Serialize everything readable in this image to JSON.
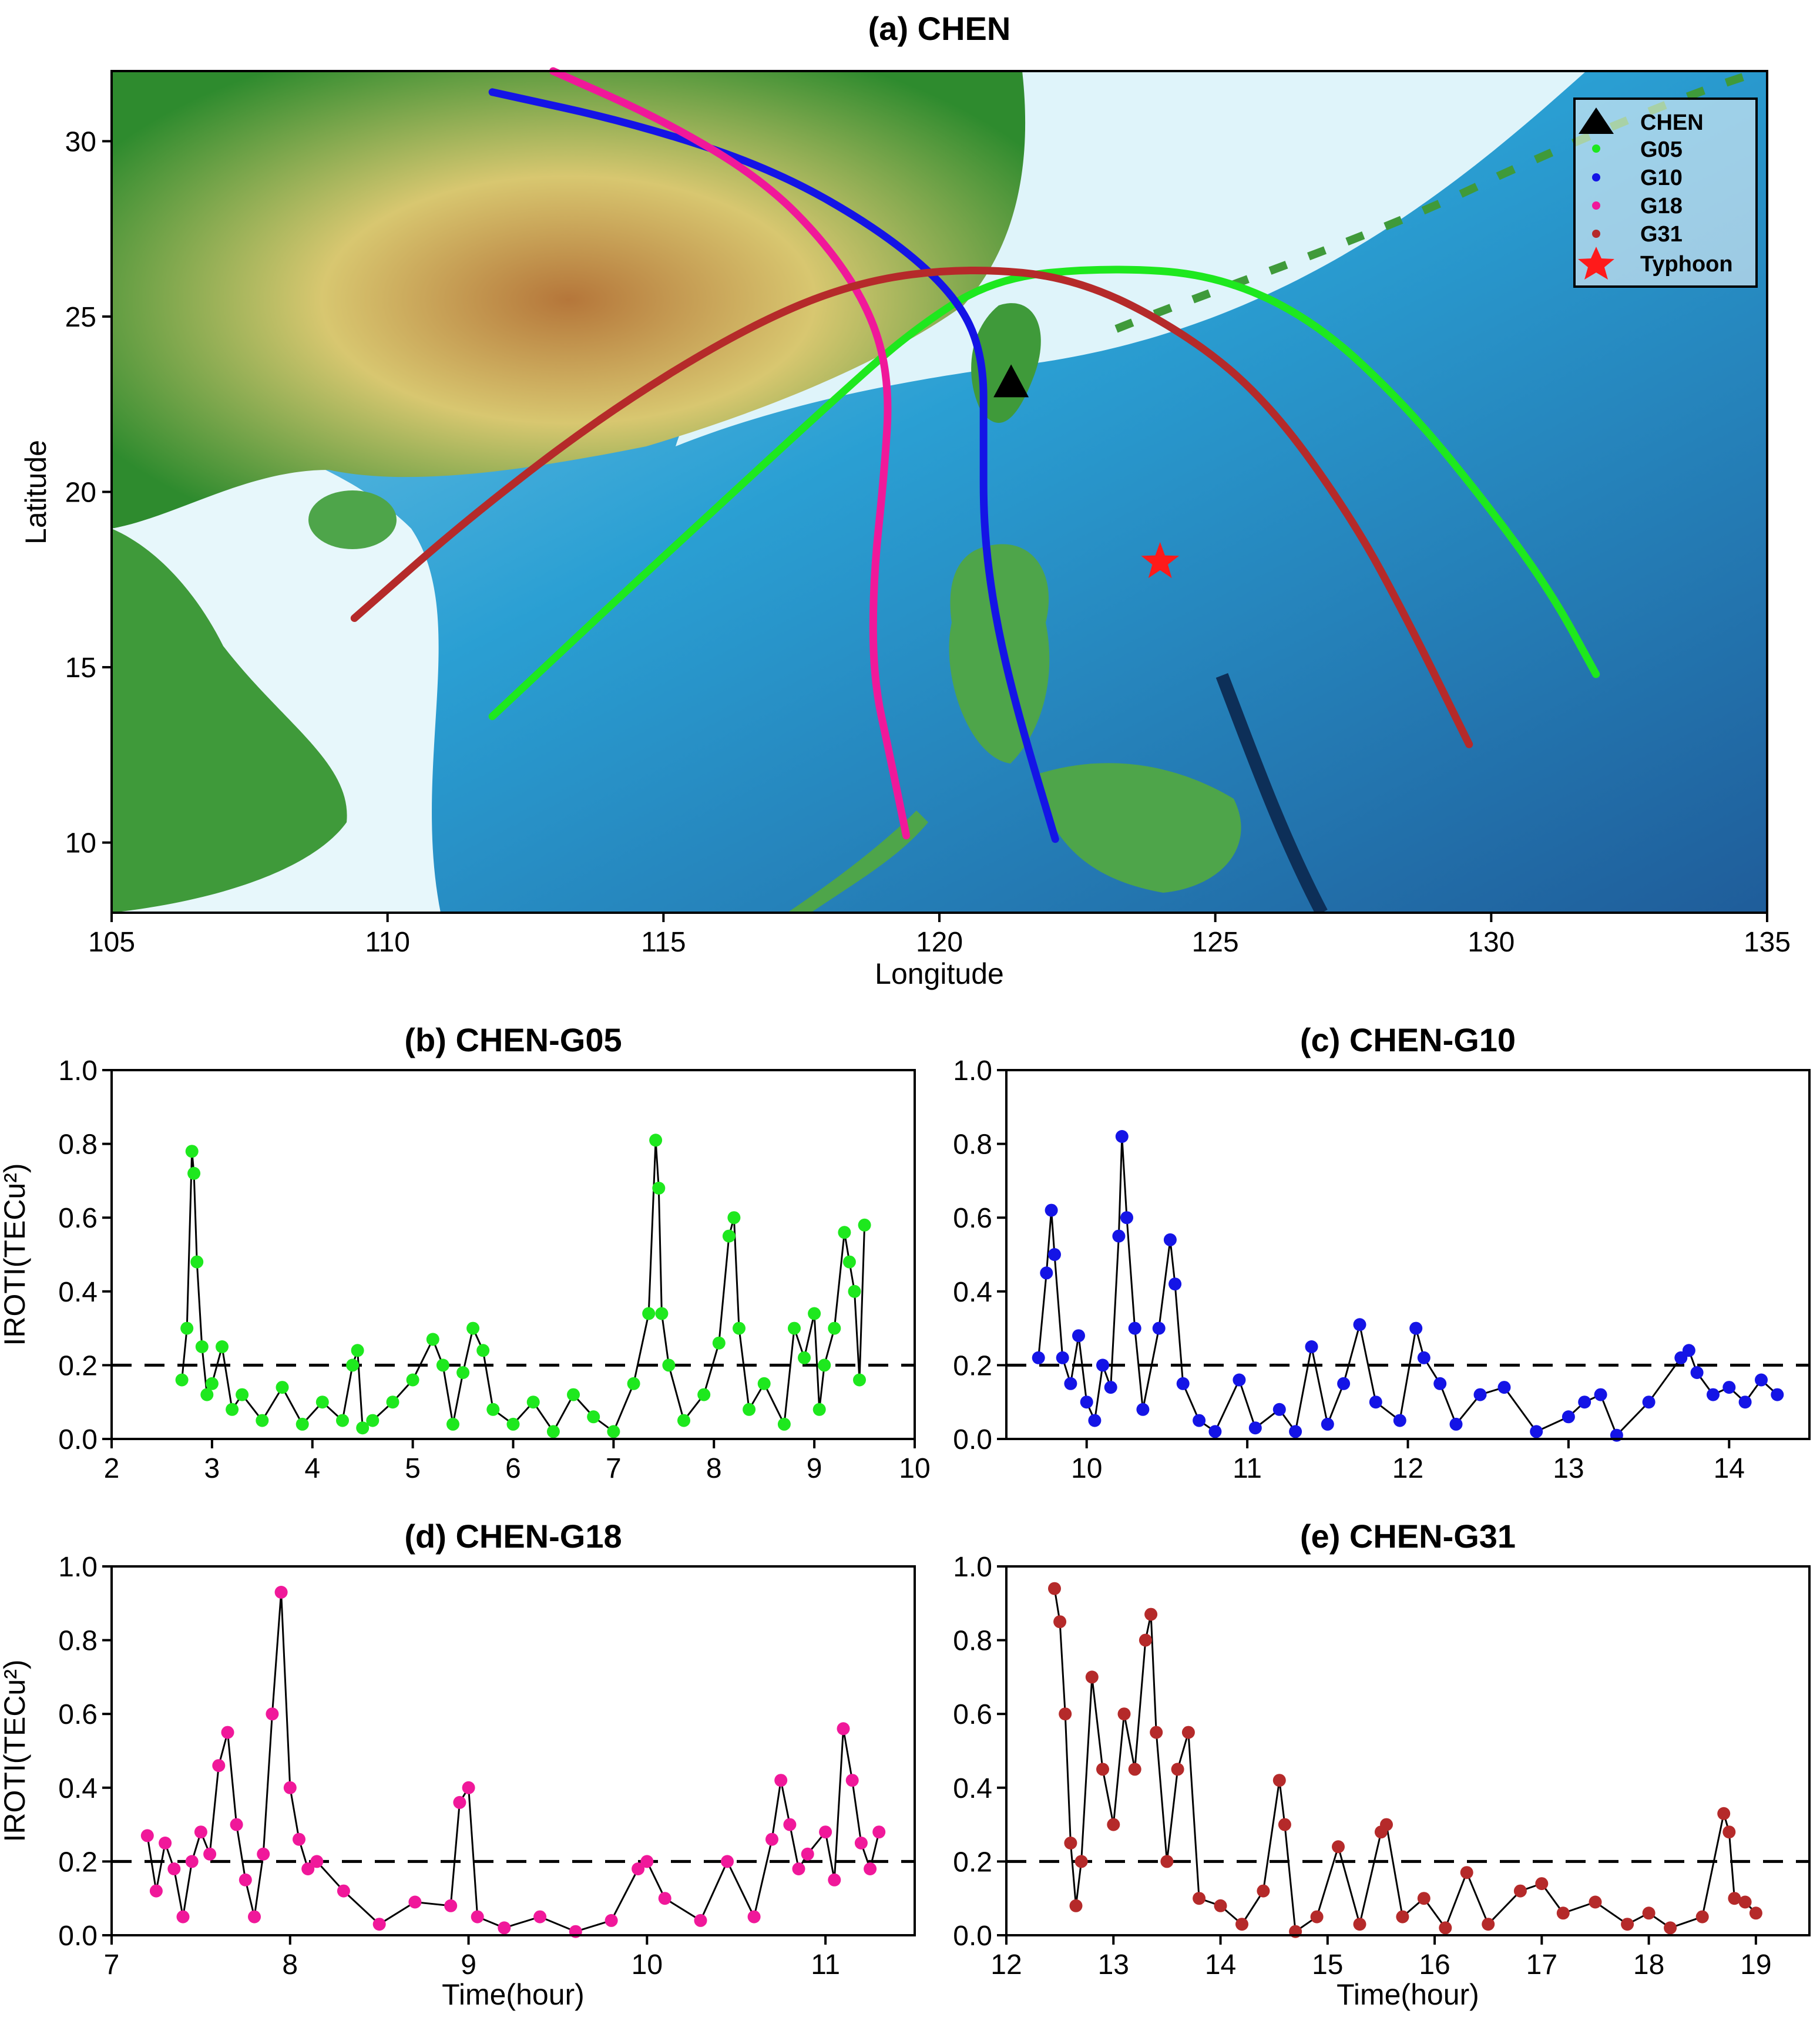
{
  "map": {
    "title": "(a) CHEN",
    "xlabel": "Longitude",
    "ylabel": "Latitude",
    "xlim": [
      105,
      135
    ],
    "ylim": [
      8,
      32
    ],
    "xticks": [
      105,
      110,
      115,
      120,
      125,
      130,
      135
    ],
    "yticks": [
      10,
      15,
      20,
      25,
      30
    ],
    "station": {
      "name": "CHEN",
      "lon": 121.3,
      "lat": 23.1
    },
    "typhoon": {
      "name": "Typhoon",
      "lon": 124.0,
      "lat": 18.0,
      "color": "#ff1a1a"
    },
    "legend": [
      "CHEN",
      "G05",
      "G10",
      "G18",
      "G31",
      "Typhoon"
    ],
    "tracks": [
      {
        "name": "G05",
        "color": "#1ee81e",
        "points": [
          [
            111.9,
            13.6
          ],
          [
            114,
            16.7
          ],
          [
            116,
            19.6
          ],
          [
            118,
            22.5
          ],
          [
            119.5,
            24.6
          ],
          [
            121,
            26.1
          ],
          [
            123,
            26.4
          ],
          [
            125,
            26.2
          ],
          [
            126.8,
            24.9
          ],
          [
            128.5,
            22.4
          ],
          [
            130,
            19.5
          ],
          [
            131.1,
            17.1
          ],
          [
            131.9,
            14.8
          ]
        ]
      },
      {
        "name": "G10",
        "color": "#1414e6",
        "points": [
          [
            111.9,
            31.4
          ],
          [
            114.5,
            30.5
          ],
          [
            117,
            29.2
          ],
          [
            119,
            27.4
          ],
          [
            120.3,
            25.6
          ],
          [
            120.8,
            23.9
          ],
          [
            120.8,
            21.5
          ],
          [
            120.8,
            19.0
          ],
          [
            121.0,
            16.5
          ],
          [
            121.4,
            13.8
          ],
          [
            122.1,
            10.1
          ]
        ]
      },
      {
        "name": "G18",
        "color": "#f0189a",
        "points": [
          [
            113.0,
            32.0
          ],
          [
            115.0,
            30.6
          ],
          [
            116.8,
            28.9
          ],
          [
            118.0,
            27.0
          ],
          [
            118.8,
            25.0
          ],
          [
            119.1,
            23.0
          ],
          [
            119.0,
            20.5
          ],
          [
            118.8,
            17.5
          ],
          [
            118.8,
            14.7
          ],
          [
            119.1,
            12.5
          ],
          [
            119.4,
            10.2
          ]
        ]
      },
      {
        "name": "G31",
        "color": "#b52a2a",
        "points": [
          [
            109.4,
            16.4
          ],
          [
            111.5,
            19.3
          ],
          [
            114,
            22.3
          ],
          [
            116.5,
            24.7
          ],
          [
            118.5,
            26.0
          ],
          [
            120.5,
            26.4
          ],
          [
            122.5,
            26.1
          ],
          [
            124.5,
            24.5
          ],
          [
            126,
            22.5
          ],
          [
            127.5,
            19.2
          ],
          [
            128.5,
            16.3
          ],
          [
            129.6,
            12.8
          ]
        ]
      }
    ]
  },
  "panels": [
    {
      "title": "(b) CHEN-G05",
      "ylabel": "IROTI(TECu²)",
      "xlabel": "",
      "color": "#1ee81e",
      "xlim": [
        2,
        10
      ],
      "ylim": [
        0,
        1.0
      ],
      "xticks": [
        2,
        3,
        4,
        5,
        6,
        7,
        8,
        9,
        10
      ],
      "yticks": [
        "0.0",
        "0.2",
        "0.4",
        "0.6",
        "0.8",
        "1.0"
      ]
    },
    {
      "title": "(c) CHEN-G10",
      "ylabel": "",
      "xlabel": "",
      "color": "#1414e6",
      "xlim": [
        9.5,
        14.5
      ],
      "ylim": [
        0,
        1.0
      ],
      "xticks": [
        10,
        11,
        12,
        13,
        14
      ],
      "yticks": [
        "0.0",
        "0.2",
        "0.4",
        "0.6",
        "0.8",
        "1.0"
      ]
    },
    {
      "title": "(d) CHEN-G18",
      "ylabel": "IROTI(TECu²)",
      "xlabel": "Time(hour)",
      "color": "#f0189a",
      "xlim": [
        7,
        11.5
      ],
      "ylim": [
        0,
        1.0
      ],
      "xticks": [
        7,
        8,
        9,
        10,
        11
      ],
      "yticks": [
        "0.0",
        "0.2",
        "0.4",
        "0.6",
        "0.8",
        "1.0"
      ]
    },
    {
      "title": "(e) CHEN-G31",
      "ylabel": "",
      "xlabel": "Time(hour)",
      "color": "#b52a2a",
      "xlim": [
        12,
        19.5
      ],
      "ylim": [
        0,
        1.0
      ],
      "xticks": [
        12,
        13,
        14,
        15,
        16,
        17,
        18,
        19
      ],
      "yticks": [
        "0.0",
        "0.2",
        "0.4",
        "0.6",
        "0.8",
        "1.0"
      ]
    }
  ],
  "chart_data": [
    {
      "type": "scatter",
      "title": "(b) CHEN-G05",
      "ylabel": "IROTI(TECu²)",
      "xlim": [
        2,
        10
      ],
      "ylim": [
        0,
        1.0
      ],
      "threshold": 0.2,
      "x": [
        2.7,
        2.75,
        2.8,
        2.82,
        2.85,
        2.9,
        2.95,
        3.0,
        3.1,
        3.2,
        3.3,
        3.5,
        3.7,
        3.9,
        4.1,
        4.3,
        4.4,
        4.45,
        4.5,
        4.6,
        4.8,
        5.0,
        5.2,
        5.3,
        5.4,
        5.5,
        5.6,
        5.7,
        5.8,
        6.0,
        6.2,
        6.4,
        6.6,
        6.8,
        7.0,
        7.2,
        7.35,
        7.42,
        7.45,
        7.48,
        7.55,
        7.7,
        7.9,
        8.05,
        8.15,
        8.2,
        8.25,
        8.35,
        8.5,
        8.7,
        8.8,
        8.9,
        9.0,
        9.05,
        9.1,
        9.2,
        9.3,
        9.35,
        9.4,
        9.45,
        9.5
      ],
      "y": [
        0.16,
        0.3,
        0.78,
        0.72,
        0.48,
        0.25,
        0.12,
        0.15,
        0.25,
        0.08,
        0.12,
        0.05,
        0.14,
        0.04,
        0.1,
        0.05,
        0.2,
        0.24,
        0.03,
        0.05,
        0.1,
        0.16,
        0.27,
        0.2,
        0.04,
        0.18,
        0.3,
        0.24,
        0.08,
        0.04,
        0.1,
        0.02,
        0.12,
        0.06,
        0.02,
        0.15,
        0.34,
        0.81,
        0.68,
        0.34,
        0.2,
        0.05,
        0.12,
        0.26,
        0.55,
        0.6,
        0.3,
        0.08,
        0.15,
        0.04,
        0.3,
        0.22,
        0.34,
        0.08,
        0.2,
        0.3,
        0.56,
        0.48,
        0.4,
        0.16,
        0.58
      ]
    },
    {
      "type": "scatter",
      "title": "(c) CHEN-G10",
      "ylabel": "",
      "xlim": [
        9.5,
        14.5
      ],
      "ylim": [
        0,
        1.0
      ],
      "threshold": 0.2,
      "x": [
        9.7,
        9.75,
        9.78,
        9.8,
        9.85,
        9.9,
        9.95,
        10.0,
        10.05,
        10.1,
        10.15,
        10.2,
        10.22,
        10.25,
        10.3,
        10.35,
        10.45,
        10.52,
        10.55,
        10.6,
        10.7,
        10.8,
        10.95,
        11.05,
        11.2,
        11.3,
        11.4,
        11.5,
        11.6,
        11.7,
        11.8,
        11.95,
        12.05,
        12.1,
        12.2,
        12.3,
        12.45,
        12.6,
        12.8,
        13.0,
        13.1,
        13.2,
        13.3,
        13.5,
        13.7,
        13.75,
        13.8,
        13.9,
        14.0,
        14.1,
        14.2,
        14.3
      ],
      "y": [
        0.22,
        0.45,
        0.62,
        0.5,
        0.22,
        0.15,
        0.28,
        0.1,
        0.05,
        0.2,
        0.14,
        0.55,
        0.82,
        0.6,
        0.3,
        0.08,
        0.3,
        0.54,
        0.42,
        0.15,
        0.05,
        0.02,
        0.16,
        0.03,
        0.08,
        0.02,
        0.25,
        0.04,
        0.15,
        0.31,
        0.1,
        0.05,
        0.3,
        0.22,
        0.15,
        0.04,
        0.12,
        0.14,
        0.02,
        0.06,
        0.1,
        0.12,
        0.01,
        0.1,
        0.22,
        0.24,
        0.18,
        0.12,
        0.14,
        0.1,
        0.16,
        0.12
      ]
    },
    {
      "type": "scatter",
      "title": "(d) CHEN-G18",
      "ylabel": "IROTI(TECu²)",
      "xlabel": "Time(hour)",
      "xlim": [
        7,
        11.5
      ],
      "ylim": [
        0,
        1.0
      ],
      "threshold": 0.2,
      "x": [
        7.2,
        7.25,
        7.3,
        7.35,
        7.4,
        7.45,
        7.5,
        7.55,
        7.6,
        7.65,
        7.7,
        7.75,
        7.8,
        7.85,
        7.9,
        7.95,
        8.0,
        8.05,
        8.1,
        8.15,
        8.3,
        8.5,
        8.7,
        8.9,
        8.95,
        9.0,
        9.05,
        9.2,
        9.4,
        9.6,
        9.8,
        9.95,
        10.0,
        10.1,
        10.3,
        10.45,
        10.6,
        10.7,
        10.75,
        10.8,
        10.85,
        10.9,
        11.0,
        11.05,
        11.1,
        11.15,
        11.2,
        11.25,
        11.3
      ],
      "y": [
        0.27,
        0.12,
        0.25,
        0.18,
        0.05,
        0.2,
        0.28,
        0.22,
        0.46,
        0.55,
        0.3,
        0.15,
        0.05,
        0.22,
        0.6,
        0.93,
        0.4,
        0.26,
        0.18,
        0.2,
        0.12,
        0.03,
        0.09,
        0.08,
        0.36,
        0.4,
        0.05,
        0.02,
        0.05,
        0.01,
        0.04,
        0.18,
        0.2,
        0.1,
        0.04,
        0.2,
        0.05,
        0.26,
        0.42,
        0.3,
        0.18,
        0.22,
        0.28,
        0.15,
        0.56,
        0.42,
        0.25,
        0.18,
        0.28
      ]
    },
    {
      "type": "scatter",
      "title": "(e) CHEN-G31",
      "ylabel": "",
      "xlabel": "Time(hour)",
      "xlim": [
        12,
        19.5
      ],
      "ylim": [
        0,
        1.0
      ],
      "threshold": 0.2,
      "x": [
        12.45,
        12.5,
        12.55,
        12.6,
        12.65,
        12.7,
        12.8,
        12.9,
        13.0,
        13.1,
        13.2,
        13.3,
        13.35,
        13.4,
        13.5,
        13.6,
        13.7,
        13.8,
        14.0,
        14.2,
        14.4,
        14.55,
        14.6,
        14.7,
        14.9,
        15.1,
        15.3,
        15.5,
        15.55,
        15.7,
        15.9,
        16.1,
        16.3,
        16.5,
        16.8,
        17.0,
        17.2,
        17.5,
        17.8,
        18.0,
        18.2,
        18.5,
        18.7,
        18.75,
        18.8,
        18.9,
        19.0
      ],
      "y": [
        0.94,
        0.85,
        0.6,
        0.25,
        0.08,
        0.2,
        0.7,
        0.45,
        0.3,
        0.6,
        0.45,
        0.8,
        0.87,
        0.55,
        0.2,
        0.45,
        0.55,
        0.1,
        0.08,
        0.03,
        0.12,
        0.42,
        0.3,
        0.01,
        0.05,
        0.24,
        0.03,
        0.28,
        0.3,
        0.05,
        0.1,
        0.02,
        0.17,
        0.03,
        0.12,
        0.14,
        0.06,
        0.09,
        0.03,
        0.06,
        0.02,
        0.05,
        0.33,
        0.28,
        0.1,
        0.09,
        0.06
      ]
    }
  ]
}
